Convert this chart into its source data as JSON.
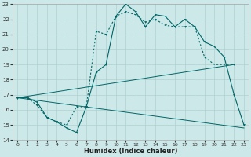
{
  "xlabel": "Humidex (Indice chaleur)",
  "bg_color": "#cce8e8",
  "grid_color": "#b0d0d0",
  "line_color": "#006666",
  "xlim": [
    -0.5,
    23.5
  ],
  "ylim": [
    14,
    23
  ],
  "xticks": [
    0,
    1,
    2,
    3,
    4,
    5,
    6,
    7,
    8,
    9,
    10,
    11,
    12,
    13,
    14,
    15,
    16,
    17,
    18,
    19,
    20,
    21,
    22,
    23
  ],
  "yticks": [
    14,
    15,
    16,
    17,
    18,
    19,
    20,
    21,
    22,
    23
  ],
  "curve1_x": [
    0,
    1,
    2,
    3,
    4,
    5,
    6,
    7,
    8,
    9,
    10,
    11,
    12,
    13,
    14,
    15,
    16,
    17,
    18,
    19,
    20,
    21,
    22
  ],
  "curve1_y": [
    16.8,
    16.8,
    16.3,
    15.5,
    15.2,
    15.0,
    16.2,
    16.2,
    21.2,
    21.0,
    22.2,
    22.5,
    22.3,
    21.8,
    22.0,
    21.6,
    21.5,
    21.5,
    21.5,
    19.5,
    19.0,
    19.0,
    19.0
  ],
  "curve2_x": [
    0,
    1,
    2,
    3,
    4,
    5,
    6,
    7,
    8,
    9,
    10,
    11,
    12,
    13,
    14,
    15,
    16,
    17,
    18,
    19,
    20,
    21,
    22,
    23
  ],
  "curve2_y": [
    16.8,
    16.8,
    16.5,
    15.5,
    15.2,
    14.8,
    14.5,
    16.2,
    18.5,
    19.0,
    22.2,
    23.0,
    22.5,
    21.5,
    22.3,
    22.2,
    21.5,
    22.0,
    21.5,
    20.5,
    20.2,
    19.5,
    17.0,
    15.0
  ],
  "line1_x": [
    0,
    22
  ],
  "line1_y": [
    16.8,
    19.0
  ],
  "line2_x": [
    0,
    23
  ],
  "line2_y": [
    16.8,
    14.8
  ],
  "markers_curve1_x": [
    0,
    1,
    2,
    3,
    4,
    5,
    6,
    7,
    8,
    9,
    10,
    11,
    12,
    13,
    14,
    15,
    16,
    17,
    19,
    22
  ],
  "markers_curve1_y": [
    16.8,
    16.8,
    16.3,
    15.5,
    15.2,
    15.0,
    16.2,
    16.2,
    21.2,
    21.0,
    22.2,
    22.5,
    22.3,
    21.8,
    22.0,
    21.6,
    21.5,
    21.5,
    19.5,
    19.0
  ],
  "markers_curve2_x": [
    0,
    1,
    2,
    3,
    4,
    5,
    6,
    7,
    8,
    9,
    10,
    11,
    12,
    13,
    14,
    15,
    16,
    17,
    18,
    19,
    20,
    21,
    22,
    23
  ],
  "markers_curve2_y": [
    16.8,
    16.8,
    16.5,
    15.5,
    15.2,
    14.8,
    14.5,
    16.2,
    18.5,
    19.0,
    22.2,
    23.0,
    22.5,
    21.5,
    22.3,
    22.2,
    21.5,
    22.0,
    21.5,
    20.5,
    20.2,
    19.5,
    17.0,
    15.0
  ]
}
